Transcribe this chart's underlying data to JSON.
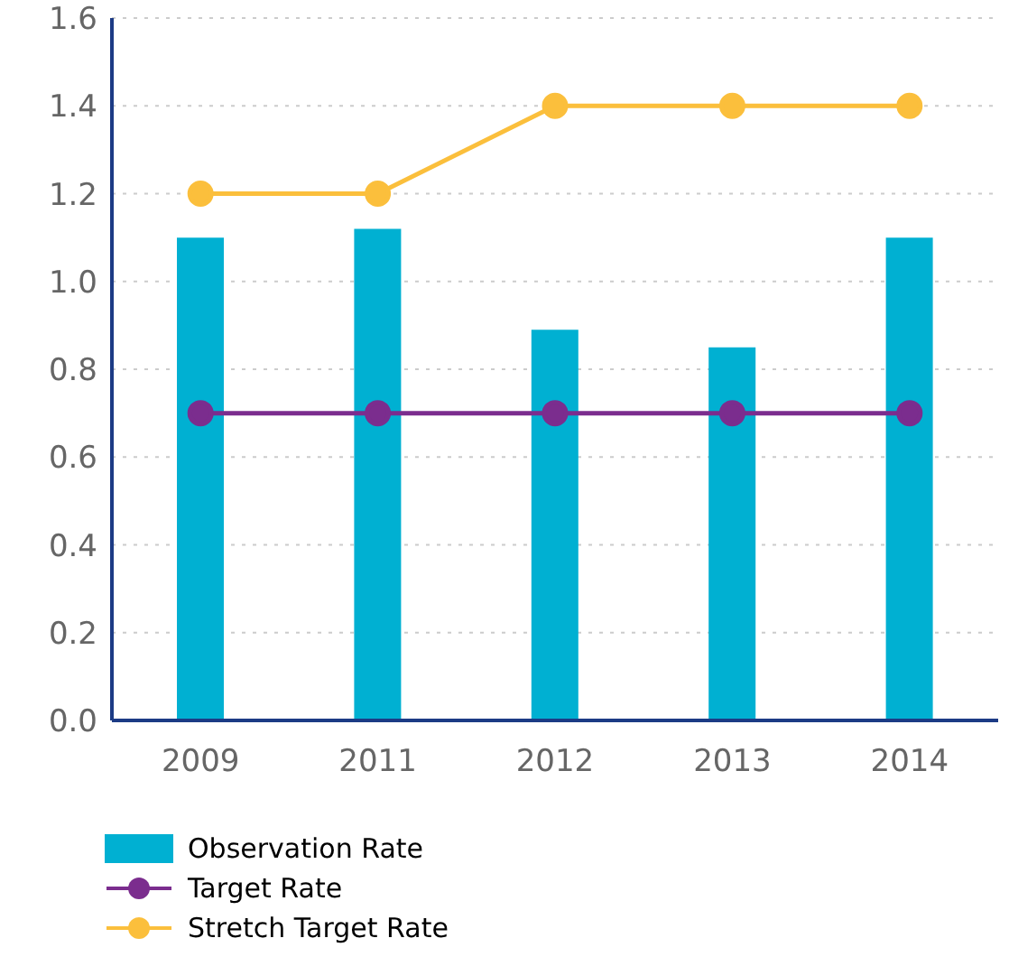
{
  "chart_data": {
    "type": "bar",
    "categories": [
      "2009",
      "2011",
      "2012",
      "2013",
      "2014"
    ],
    "series": [
      {
        "name": "Observation Rate",
        "color": "#00b0d2",
        "values": [
          1.1,
          1.12,
          0.89,
          0.85,
          1.1
        ]
      },
      {
        "name": "Target Rate",
        "type": "line",
        "color": "#7b2d8e",
        "values": [
          0.7,
          0.7,
          0.7,
          0.7,
          0.7
        ]
      },
      {
        "name": "Stretch Target Rate",
        "type": "line",
        "color": "#fbbf3c",
        "values": [
          1.2,
          1.2,
          1.4,
          1.4,
          1.4
        ]
      }
    ],
    "ylim": [
      0,
      1.6
    ],
    "yticks": [
      {
        "value": 0,
        "label": "0.0"
      },
      {
        "value": 0.2,
        "label": "0.2"
      },
      {
        "value": 0.4,
        "label": "0.4"
      },
      {
        "value": 0.6,
        "label": "0.6"
      },
      {
        "value": 0.8,
        "label": "0.8"
      },
      {
        "value": 1.0,
        "label": "1.0"
      },
      {
        "value": 1.2,
        "label": "1.2"
      },
      {
        "value": 1.4,
        "label": "1.4"
      },
      {
        "value": 1.6,
        "label": "1.6"
      }
    ],
    "grid": "y",
    "legend": "bottom left",
    "marker": "circle"
  }
}
